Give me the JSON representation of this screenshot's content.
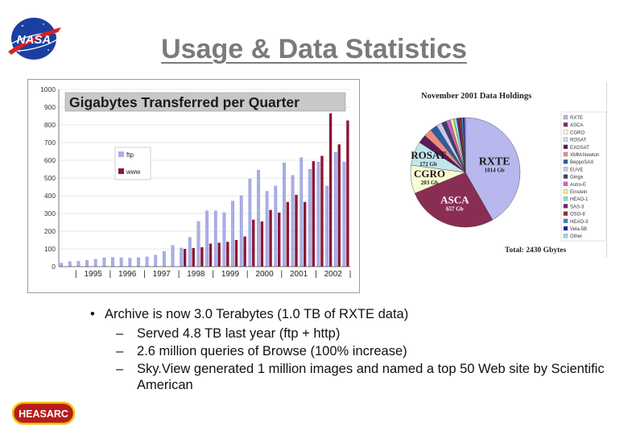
{
  "title": "Usage & Data Statistics",
  "logos": {
    "nasa_text": "NASA",
    "heasarc_text": "HEASARC"
  },
  "chart_data": [
    {
      "type": "bar",
      "title": "Gigabytes Transferred per Quarter",
      "ylim": [
        0,
        1000
      ],
      "yticks": [
        0,
        100,
        200,
        300,
        400,
        500,
        600,
        700,
        800,
        900,
        1000
      ],
      "year_labels": [
        "1995",
        "1996",
        "1997",
        "1998",
        "1999",
        "2000",
        "2001",
        "2002"
      ],
      "grid": true,
      "legend": "right",
      "colors": {
        "ftp": "#aab0e8",
        "www": "#8a1838"
      },
      "series": [
        {
          "name": "ftp",
          "values": [
            20,
            28,
            30,
            35,
            42,
            50,
            52,
            50,
            48,
            50,
            55,
            65,
            85,
            120,
            105,
            165,
            255,
            315,
            315,
            305,
            370,
            400,
            495,
            545,
            425,
            455,
            585,
            515,
            615,
            550,
            590,
            455,
            645,
            590
          ]
        },
        {
          "name": "www",
          "values": [
            0,
            0,
            0,
            0,
            0,
            0,
            0,
            0,
            0,
            0,
            0,
            0,
            0,
            0,
            100,
            105,
            110,
            130,
            135,
            140,
            150,
            170,
            265,
            255,
            320,
            305,
            365,
            405,
            365,
            595,
            625,
            865,
            690,
            825
          ]
        }
      ]
    },
    {
      "type": "pie",
      "title": "November 2001 Data Holdings",
      "total_label": "Total: 2430 Gbytes",
      "legend": "right",
      "slices": [
        {
          "name": "RXTE",
          "value": 1014,
          "label": "1014 Gb",
          "color": "#b8b8ee"
        },
        {
          "name": "ASCA",
          "value": 657,
          "label": "657 Gb",
          "color": "#8a2d55"
        },
        {
          "name": "CGRO",
          "value": 203,
          "label": "203 Gb",
          "color": "#fbfbd2"
        },
        {
          "name": "ROSAT",
          "value": 172,
          "label": "172 Gb",
          "color": "#c2e6ec"
        },
        {
          "name": "EXOSAT",
          "value": 62,
          "color": "#5b1a5a"
        },
        {
          "name": "XMM-Newton",
          "value": 58,
          "color": "#f08a80"
        },
        {
          "name": "BeppoSAX",
          "value": 50,
          "color": "#2a5ea0"
        },
        {
          "name": "EUVE",
          "value": 40,
          "color": "#c8c8f0"
        },
        {
          "name": "Ginga",
          "value": 35,
          "color": "#40406a"
        },
        {
          "name": "Astro-E",
          "value": 30,
          "color": "#d060c8"
        },
        {
          "name": "Einstein",
          "value": 25,
          "color": "#f0f090"
        },
        {
          "name": "HEAO-1",
          "value": 22,
          "color": "#80e0e0"
        },
        {
          "name": "SAS-3",
          "value": 18,
          "color": "#702070"
        },
        {
          "name": "OSO-8",
          "value": 15,
          "color": "#903030"
        },
        {
          "name": "HEAO-3",
          "value": 13,
          "color": "#4080c0"
        },
        {
          "name": "Vela-5B",
          "value": 10,
          "color": "#2020c0"
        },
        {
          "name": "Other",
          "value": 6,
          "color": "#a0d8f0"
        }
      ],
      "legend_labels": [
        "RXTE",
        "ASCA",
        "CGRO",
        "ROSAT",
        "EXOSAT",
        "XMM-Newton",
        "BeppoSAX",
        "EUVE",
        "Ginga",
        "Astro-E",
        "Einstein",
        "HEAO-1",
        "SAS-3",
        "OSO-8",
        "HEAO-3",
        "Vela-5B",
        "Other"
      ]
    }
  ],
  "bullets": {
    "main": "Archive is now 3.0 Terabytes (1.0 TB of RXTE data)",
    "subs": [
      "Served 4.8 TB last year (ftp + http)",
      "2.6 million queries of Browse (100% increase)",
      "Sky.View generated 1 million images and named a  top 50 Web site by Scientific American"
    ]
  }
}
